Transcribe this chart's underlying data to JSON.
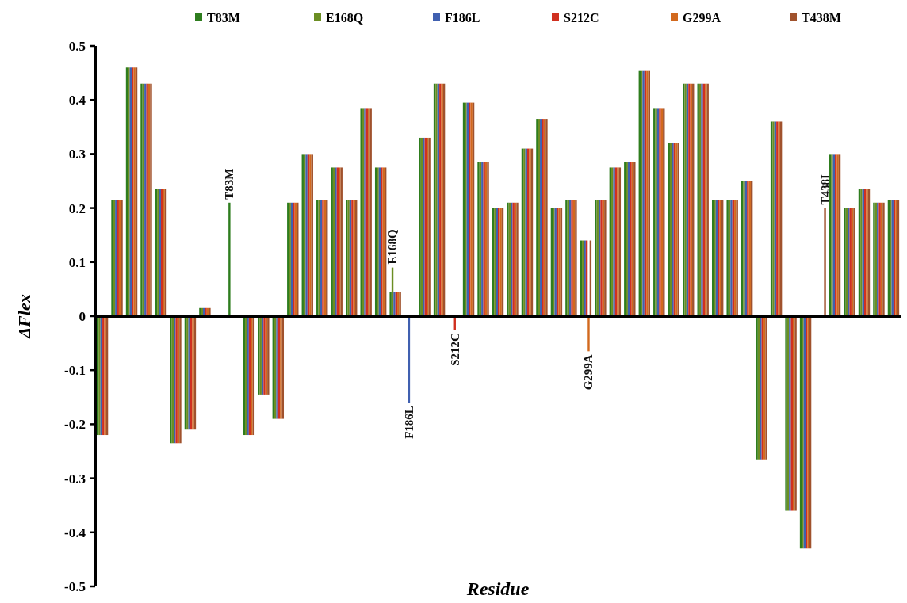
{
  "chart_data": {
    "type": "bar",
    "xlabel": "Residue",
    "ylabel": "ΔFlex",
    "categories": [
      null,
      null,
      null,
      null,
      null,
      null,
      null,
      null,
      null,
      null,
      null,
      null,
      null,
      null,
      null,
      null,
      null,
      null,
      null,
      null,
      null,
      null,
      null,
      null,
      null,
      null,
      null,
      null,
      null,
      null,
      null,
      null,
      null,
      null,
      null,
      null,
      null,
      null,
      null,
      null,
      null,
      null,
      null,
      null,
      null,
      null,
      null,
      null,
      null,
      null,
      null,
      null,
      null,
      null,
      null
    ],
    "ylim": [
      -0.5,
      0.5
    ],
    "yticks": [
      -0.5,
      -0.4,
      -0.3,
      -0.2,
      -0.1,
      0,
      0.1,
      0.2,
      0.3,
      0.4,
      0.5
    ],
    "legend": "top",
    "series": [
      {
        "name": "T83M",
        "color": "#2e7d1e",
        "values": [
          -0.22,
          0.215,
          0.46,
          0.43,
          0.235,
          -0.235,
          -0.21,
          0.015,
          null,
          0.21,
          -0.22,
          -0.145,
          -0.19,
          0.21,
          0.3,
          0.215,
          0.275,
          0.215,
          0.385,
          0.275,
          0.045,
          null,
          0.33,
          0.43,
          null,
          0.395,
          0.285,
          0.2,
          0.21,
          0.31,
          0.365,
          0.2,
          0.215,
          0.14,
          0.215,
          0.275,
          0.285,
          0.455,
          0.385,
          0.32,
          0.43,
          0.43,
          0.215,
          0.215,
          0.25,
          -0.265,
          0.36,
          -0.36,
          -0.43,
          null,
          0.3,
          0.2,
          0.235,
          0.21,
          0.215
        ],
        "value_labels": [
          null,
          null,
          null,
          null,
          null,
          null,
          null,
          null,
          null,
          "T83M",
          null,
          null,
          null,
          null,
          null,
          null,
          null,
          null,
          null,
          null,
          null,
          null,
          null,
          null,
          null,
          null,
          null,
          null,
          null,
          null,
          null,
          null,
          null,
          null,
          null,
          null,
          null,
          null,
          null,
          null,
          null,
          null,
          null,
          null,
          null,
          null,
          null,
          null,
          null,
          null,
          null,
          null,
          null,
          null,
          null
        ]
      },
      {
        "name": "E168Q",
        "color": "#6b8e23",
        "values": [
          -0.22,
          0.215,
          0.46,
          0.43,
          0.235,
          -0.235,
          -0.21,
          0.015,
          null,
          null,
          -0.22,
          -0.145,
          -0.19,
          0.21,
          0.3,
          0.215,
          0.275,
          0.215,
          0.385,
          0.275,
          0.09,
          null,
          0.33,
          0.43,
          null,
          0.395,
          0.285,
          0.2,
          0.21,
          0.31,
          0.365,
          0.2,
          0.215,
          0.14,
          0.215,
          0.275,
          0.285,
          0.455,
          0.385,
          0.32,
          0.43,
          0.43,
          0.215,
          0.215,
          0.25,
          -0.265,
          0.36,
          -0.36,
          -0.43,
          null,
          0.3,
          0.2,
          0.235,
          0.21,
          0.215
        ],
        "value_labels": [
          null,
          null,
          null,
          null,
          null,
          null,
          null,
          null,
          null,
          null,
          null,
          null,
          null,
          null,
          null,
          null,
          null,
          null,
          null,
          null,
          "E168Q",
          null,
          null,
          null,
          null,
          null,
          null,
          null,
          null,
          null,
          null,
          null,
          null,
          null,
          null,
          null,
          null,
          null,
          null,
          null,
          null,
          null,
          null,
          null,
          null,
          null,
          null,
          null,
          null,
          null,
          null,
          null,
          null,
          null,
          null
        ]
      },
      {
        "name": "F186L",
        "color": "#4060b0",
        "values": [
          -0.22,
          0.215,
          0.46,
          0.43,
          0.235,
          -0.235,
          -0.21,
          0.015,
          null,
          null,
          -0.22,
          -0.145,
          -0.19,
          0.21,
          0.3,
          0.215,
          0.275,
          0.215,
          0.385,
          0.275,
          0.045,
          -0.16,
          0.33,
          0.43,
          null,
          0.395,
          0.285,
          0.2,
          0.21,
          0.31,
          0.365,
          0.2,
          0.215,
          0.14,
          0.215,
          0.275,
          0.285,
          0.455,
          0.385,
          0.32,
          0.43,
          0.43,
          0.215,
          0.215,
          0.25,
          -0.265,
          0.36,
          -0.36,
          -0.43,
          null,
          0.3,
          0.2,
          0.235,
          0.21,
          0.215
        ],
        "value_labels": [
          null,
          null,
          null,
          null,
          null,
          null,
          null,
          null,
          null,
          null,
          null,
          null,
          null,
          null,
          null,
          null,
          null,
          null,
          null,
          null,
          null,
          "F186L",
          null,
          null,
          null,
          null,
          null,
          null,
          null,
          null,
          null,
          null,
          null,
          null,
          null,
          null,
          null,
          null,
          null,
          null,
          null,
          null,
          null,
          null,
          null,
          null,
          null,
          null,
          null,
          null,
          null,
          null,
          null,
          null,
          null
        ]
      },
      {
        "name": "S212C",
        "color": "#d03020",
        "values": [
          -0.22,
          0.215,
          0.46,
          0.43,
          0.235,
          -0.235,
          -0.21,
          0.015,
          null,
          null,
          -0.22,
          -0.145,
          -0.19,
          0.21,
          0.3,
          0.215,
          0.275,
          0.215,
          0.385,
          0.275,
          0.045,
          null,
          0.33,
          0.43,
          -0.025,
          0.395,
          0.285,
          0.2,
          0.21,
          0.31,
          0.365,
          0.2,
          0.215,
          0.14,
          0.215,
          0.275,
          0.285,
          0.455,
          0.385,
          0.32,
          0.43,
          0.43,
          0.215,
          0.215,
          0.25,
          -0.265,
          0.36,
          -0.36,
          -0.43,
          null,
          0.3,
          0.2,
          0.235,
          0.21,
          0.215
        ],
        "value_labels": [
          null,
          null,
          null,
          null,
          null,
          null,
          null,
          null,
          null,
          null,
          null,
          null,
          null,
          null,
          null,
          null,
          null,
          null,
          null,
          null,
          null,
          null,
          null,
          null,
          "S212C",
          null,
          null,
          null,
          null,
          null,
          null,
          null,
          null,
          null,
          null,
          null,
          null,
          null,
          null,
          null,
          null,
          null,
          null,
          null,
          null,
          null,
          null,
          null,
          null,
          null,
          null,
          null,
          null,
          null,
          null
        ]
      },
      {
        "name": "G299A",
        "color": "#d2691e",
        "values": [
          -0.22,
          0.215,
          0.46,
          0.43,
          0.235,
          -0.235,
          -0.21,
          0.015,
          null,
          null,
          -0.22,
          -0.145,
          -0.19,
          0.21,
          0.3,
          0.215,
          0.275,
          0.215,
          0.385,
          0.275,
          0.045,
          null,
          0.33,
          0.43,
          null,
          0.395,
          0.285,
          0.2,
          0.21,
          0.31,
          0.365,
          0.2,
          0.215,
          -0.065,
          0.215,
          0.275,
          0.285,
          0.455,
          0.385,
          0.32,
          0.43,
          0.43,
          0.215,
          0.215,
          0.25,
          -0.265,
          0.36,
          -0.36,
          -0.43,
          null,
          0.3,
          0.2,
          0.235,
          0.21,
          0.215
        ],
        "value_labels": [
          null,
          null,
          null,
          null,
          null,
          null,
          null,
          null,
          null,
          null,
          null,
          null,
          null,
          null,
          null,
          null,
          null,
          null,
          null,
          null,
          null,
          null,
          null,
          null,
          null,
          null,
          null,
          null,
          null,
          null,
          null,
          null,
          null,
          "G299A",
          null,
          null,
          null,
          null,
          null,
          null,
          null,
          null,
          null,
          null,
          null,
          null,
          null,
          null,
          null,
          null,
          null,
          null,
          null,
          null,
          null
        ]
      },
      {
        "name": "T438M",
        "color": "#a0522d",
        "values": [
          -0.22,
          0.215,
          0.46,
          0.43,
          0.235,
          -0.235,
          -0.21,
          0.015,
          null,
          null,
          -0.22,
          -0.145,
          -0.19,
          0.21,
          0.3,
          0.215,
          0.275,
          0.215,
          0.385,
          0.275,
          0.045,
          null,
          0.33,
          0.43,
          null,
          0.395,
          0.285,
          0.2,
          0.21,
          0.31,
          0.365,
          0.2,
          0.215,
          0.14,
          0.215,
          0.275,
          0.285,
          0.455,
          0.385,
          0.32,
          0.43,
          0.43,
          0.215,
          0.215,
          0.25,
          -0.265,
          0.36,
          -0.36,
          -0.43,
          0.2,
          0.3,
          0.2,
          0.235,
          0.21,
          0.215
        ],
        "value_labels": [
          null,
          null,
          null,
          null,
          null,
          null,
          null,
          null,
          null,
          null,
          null,
          null,
          null,
          null,
          null,
          null,
          null,
          null,
          null,
          null,
          null,
          null,
          null,
          null,
          null,
          null,
          null,
          null,
          null,
          null,
          null,
          null,
          null,
          null,
          null,
          null,
          null,
          null,
          null,
          null,
          null,
          null,
          null,
          null,
          null,
          null,
          null,
          null,
          null,
          "T438I",
          null,
          null,
          null,
          null,
          null
        ]
      }
    ]
  }
}
